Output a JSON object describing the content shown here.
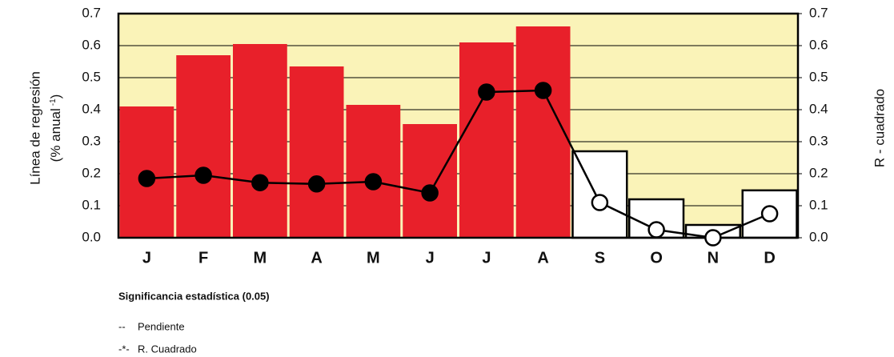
{
  "chart_data": {
    "type": "bar_line",
    "categories": [
      "J",
      "F",
      "M",
      "A",
      "M",
      "J",
      "J",
      "A",
      "S",
      "O",
      "N",
      "D"
    ],
    "series": [
      {
        "name": "Pendiente",
        "type": "bar",
        "axis": "y",
        "values": [
          0.41,
          0.57,
          0.605,
          0.535,
          0.415,
          0.355,
          0.61,
          0.66,
          0.27,
          0.12,
          0.04,
          0.148
        ],
        "colors": [
          "#e8202a",
          "#e8202a",
          "#e8202a",
          "#e8202a",
          "#e8202a",
          "#e8202a",
          "#e8202a",
          "#e8202a",
          "#ffffff",
          "#ffffff",
          "#ffffff",
          "#ffffff"
        ]
      },
      {
        "name": "R. Cuadrado",
        "type": "line",
        "axis": "y2",
        "color": "#000000",
        "values": [
          0.185,
          0.195,
          0.172,
          0.168,
          0.175,
          0.14,
          0.455,
          0.46,
          0.11,
          0.025,
          0.0,
          0.075
        ],
        "marker_colors": [
          "#000000",
          "#000000",
          "#000000",
          "#000000",
          "#000000",
          "#000000",
          "#000000",
          "#000000",
          "#ffffff",
          "#ffffff",
          "#ffffff",
          "#ffffff"
        ]
      }
    ],
    "ylabel": "Línea de regresión",
    "ylabel_unit": {
      "text": "(% anual",
      "sup": "-1",
      "close": ")"
    },
    "y2label": "R - cuadrado",
    "ylim": [
      0,
      0.7
    ],
    "yticks": [
      {
        "value": 0,
        "label": "0.0"
      },
      0.1,
      0.2,
      0.3,
      0.4,
      0.5,
      0.6,
      0.7
    ],
    "y2lim": [
      0,
      0.7
    ],
    "y2ticks": [
      {
        "value": 0,
        "label": "0.0"
      },
      0.1,
      0.2,
      0.3,
      0.4,
      0.5,
      0.6,
      0.7
    ],
    "grid": true,
    "plot_background": "#faf3b8",
    "note_title": "Significancia estadística (0.05)",
    "legend_markers": [
      "--",
      "-*-"
    ]
  }
}
